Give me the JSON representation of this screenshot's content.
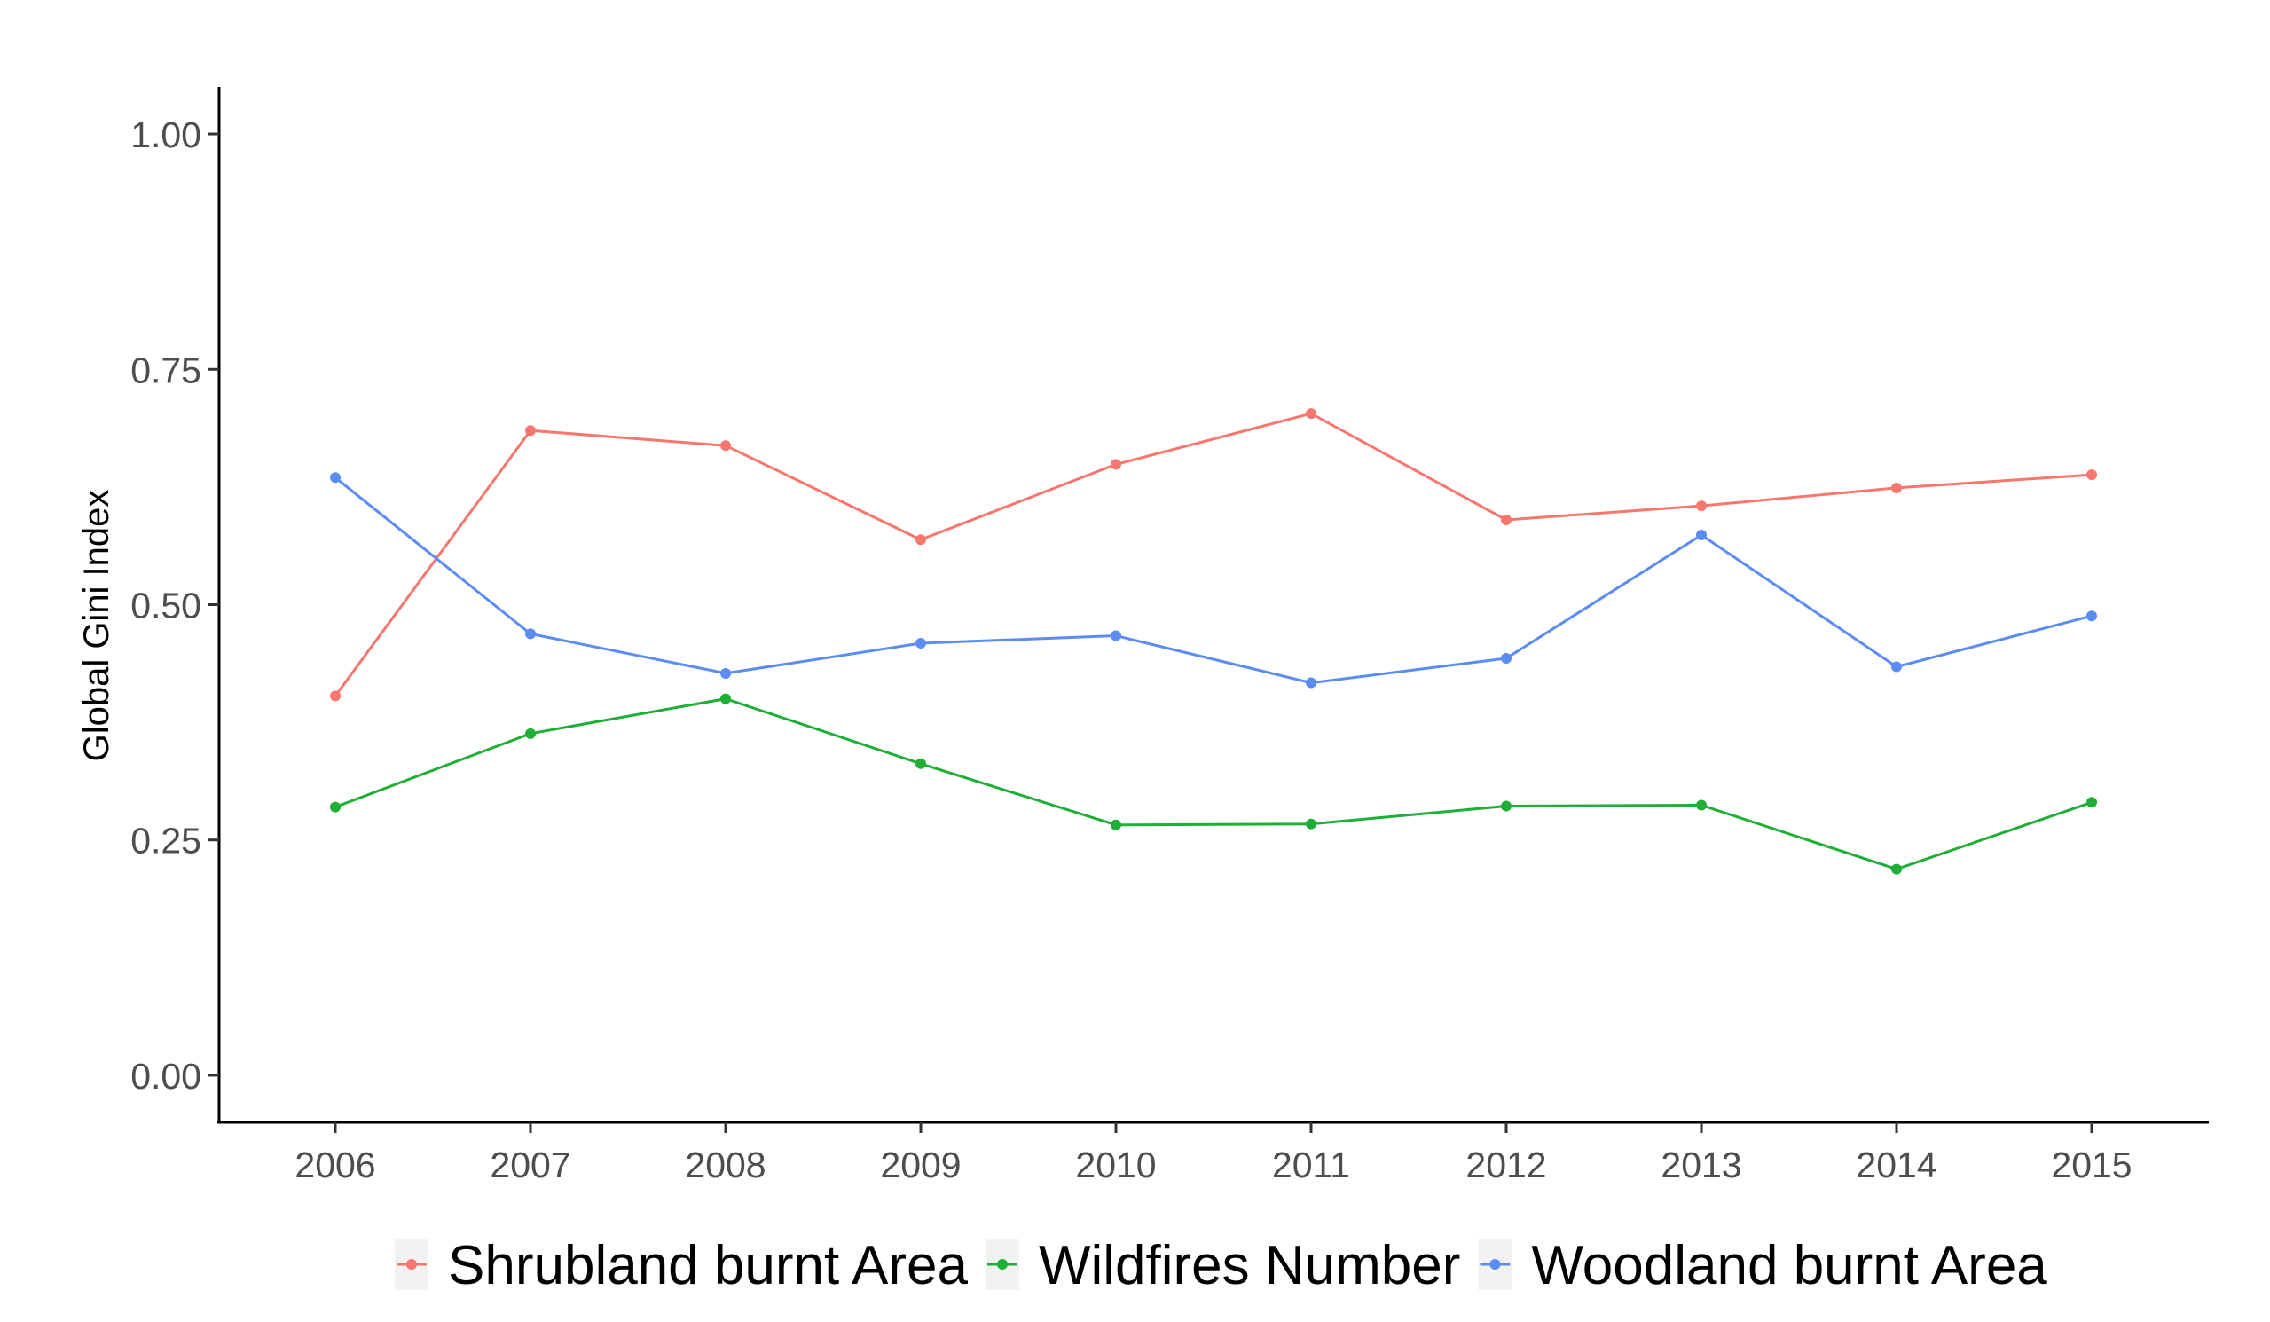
{
  "chart_data": {
    "type": "line",
    "title": "",
    "xlabel": "",
    "ylabel": "Global Gini Index",
    "x": [
      2006,
      2007,
      2008,
      2009,
      2010,
      2011,
      2012,
      2013,
      2014,
      2015
    ],
    "x_tick_labels": [
      "2006",
      "2007",
      "2008",
      "2009",
      "2010",
      "2011",
      "2012",
      "2013",
      "2014",
      "2015"
    ],
    "ylim": [
      -0.05,
      1.05
    ],
    "y_ticks": [
      0.0,
      0.25,
      0.5,
      0.75,
      1.0
    ],
    "y_tick_labels": [
      "0.00",
      "0.25",
      "0.50",
      "0.75",
      "1.00"
    ],
    "grid": false,
    "legend_position": "bottom",
    "series": [
      {
        "name": "Shrubland burnt Area",
        "color": "#F8766D",
        "values": [
          0.403,
          0.685,
          0.669,
          0.569,
          0.649,
          0.703,
          0.59,
          0.605,
          0.624,
          0.638
        ]
      },
      {
        "name": "Wildfires Number",
        "color": "#1FAF36",
        "values": [
          0.285,
          0.363,
          0.4,
          0.331,
          0.266,
          0.267,
          0.286,
          0.287,
          0.219,
          0.29
        ]
      },
      {
        "name": "Woodland burnt Area",
        "color": "#5B8CF4",
        "values": [
          0.635,
          0.469,
          0.427,
          0.459,
          0.467,
          0.417,
          0.443,
          0.574,
          0.434,
          0.488
        ]
      }
    ]
  }
}
